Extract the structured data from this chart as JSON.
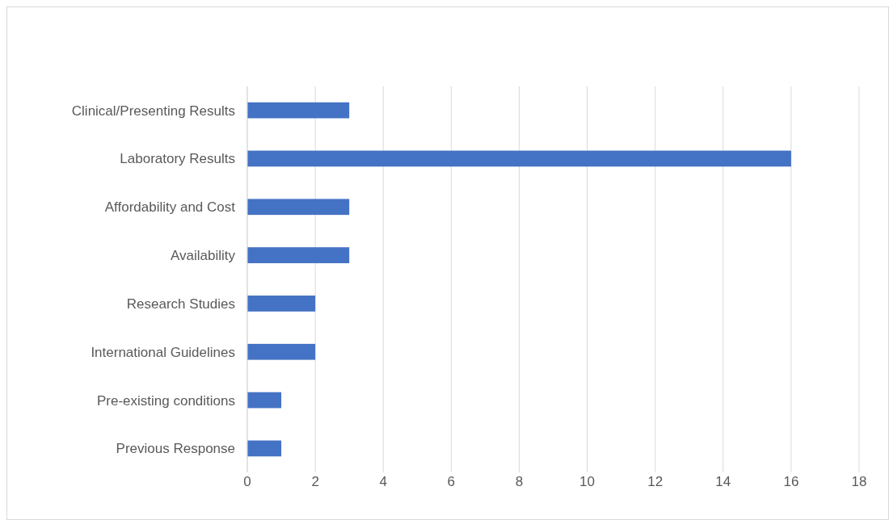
{
  "chart_data": {
    "type": "bar",
    "orientation": "horizontal",
    "categories": [
      "Clinical/Presenting Results",
      "Laboratory Results",
      "Affordability and Cost",
      "Availability",
      "Research Studies",
      "International Guidelines",
      "Pre-existing conditions",
      "Previous Response"
    ],
    "values": [
      3,
      16,
      3,
      3,
      2,
      2,
      1,
      1
    ],
    "color": "#4472c4",
    "xlim": [
      0,
      18
    ],
    "xticks": [
      0,
      2,
      4,
      6,
      8,
      10,
      12,
      14,
      16,
      18
    ],
    "grid": "x"
  }
}
